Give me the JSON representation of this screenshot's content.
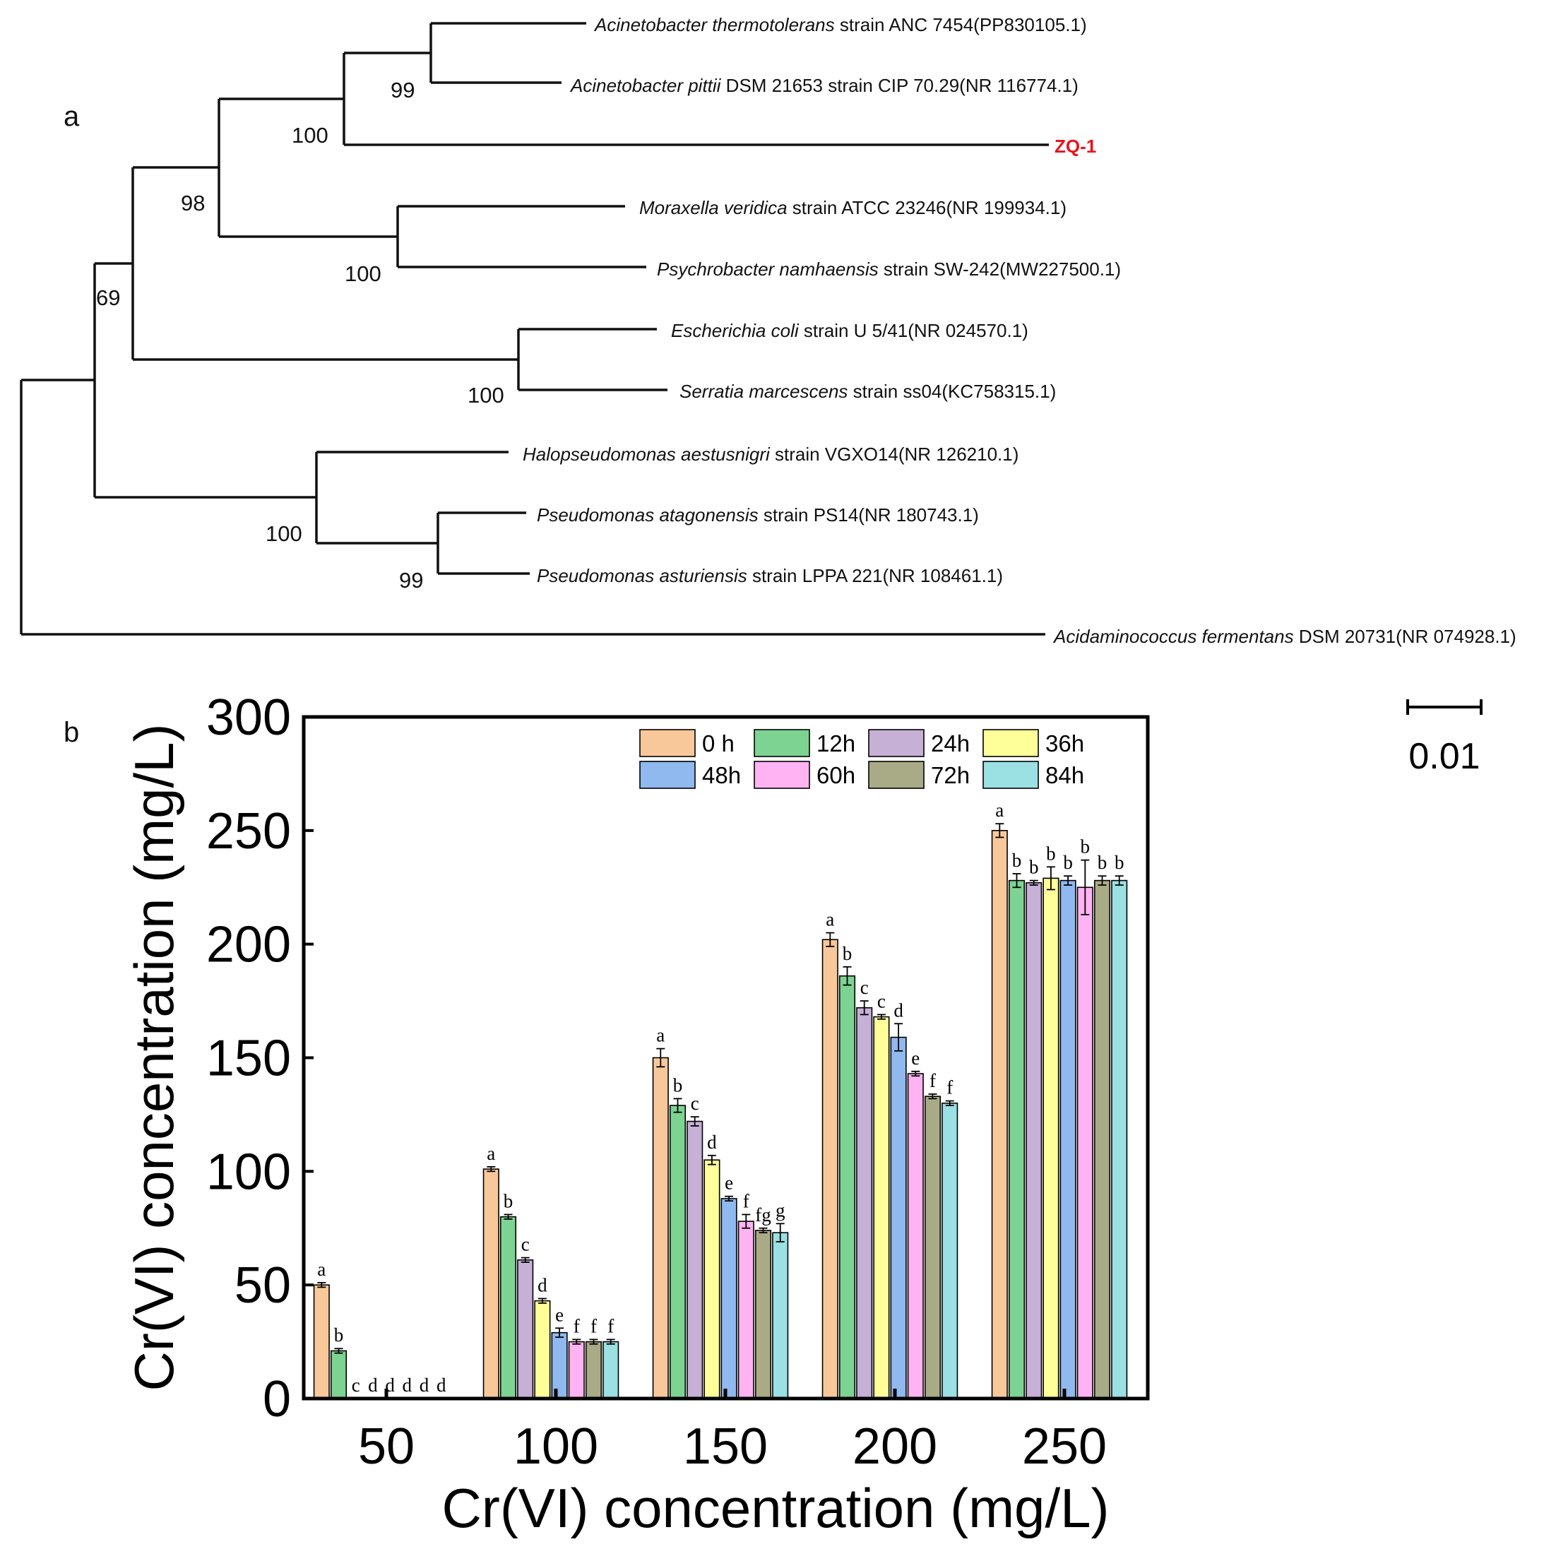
{
  "panels": {
    "a": "a",
    "b": "b"
  },
  "tree": {
    "scale_label": "0.01",
    "taxa": [
      {
        "id": "t1",
        "italic": "Acinetobacter thermotolerans",
        "rest": " strain ANC 7454(PP830105.1)"
      },
      {
        "id": "t2",
        "italic": "Acinetobacter pittii",
        "rest": " DSM 21653 strain CIP 70.29(NR 116774.1)"
      },
      {
        "id": "t3",
        "italic": "",
        "rest": "ZQ-1",
        "highlight": true
      },
      {
        "id": "t4",
        "italic": "Moraxella veridica",
        "rest": " strain ATCC 23246(NR 199934.1)"
      },
      {
        "id": "t5",
        "italic": "Psychrobacter namhaensis",
        "rest": " strain SW-242(MW227500.1)"
      },
      {
        "id": "t6",
        "italic": "Escherichia coli",
        "rest": " strain U 5/41(NR 024570.1)"
      },
      {
        "id": "t7",
        "italic": "Serratia marcescens",
        "rest": " strain ss04(KC758315.1)"
      },
      {
        "id": "t8",
        "italic": "Halopseudomonas aestusnigri",
        "rest": " strain VGXO14(NR 126210.1)"
      },
      {
        "id": "t9",
        "italic": "Pseudomonas atagonensis",
        "rest": " strain PS14(NR 180743.1)"
      },
      {
        "id": "t10",
        "italic": "Pseudomonas asturiensis",
        "rest": " strain LPPA 221(NR 108461.1)"
      },
      {
        "id": "t11",
        "italic": "Acidaminococcus fermentans",
        "rest": " DSM 20731(NR 074928.1)"
      }
    ],
    "bootstrap": [
      "99",
      "100",
      "98",
      "100",
      "69",
      "100",
      "100",
      "99"
    ],
    "highlight_color": "#e8141c"
  },
  "chart_data": {
    "type": "bar",
    "title": "",
    "xlabel": "Cr(VI) concentration (mg/L)",
    "ylabel": "Cr(VI) concentration (mg/L)",
    "ylim": [
      0,
      300
    ],
    "yticks": [
      0,
      50,
      100,
      150,
      200,
      250,
      300
    ],
    "categories": [
      "50",
      "100",
      "150",
      "200",
      "250"
    ],
    "grid": false,
    "legend_position": "top-right",
    "series": [
      {
        "name": "0 h",
        "color": "#f9c89a",
        "values": [
          50,
          101,
          150,
          202,
          250
        ],
        "errors": [
          1,
          1,
          4,
          3,
          3
        ],
        "labels": [
          "a",
          "a",
          "a",
          "a",
          "a"
        ]
      },
      {
        "name": "12h",
        "color": "#7dd392",
        "values": [
          21,
          80,
          129,
          186,
          228
        ],
        "errors": [
          1,
          1,
          3,
          4,
          3
        ],
        "labels": [
          "b",
          "b",
          "b",
          "b",
          "b"
        ]
      },
      {
        "name": "24h",
        "color": "#c6b0d6",
        "values": [
          0,
          61,
          122,
          172,
          227
        ],
        "errors": [
          0,
          1,
          2,
          3,
          1
        ],
        "labels": [
          "c",
          "c",
          "c",
          "c",
          "b"
        ]
      },
      {
        "name": "36h",
        "color": "#ffff99",
        "values": [
          0,
          43,
          105,
          168,
          229
        ],
        "errors": [
          0,
          1,
          2,
          1,
          5
        ],
        "labels": [
          "d",
          "d",
          "d",
          "c",
          "b"
        ]
      },
      {
        "name": "48h",
        "color": "#8fb9ef",
        "values": [
          0,
          29,
          88,
          159,
          228
        ],
        "errors": [
          0,
          2,
          1,
          6,
          2
        ],
        "labels": [
          "d",
          "e",
          "e",
          "d",
          "b"
        ]
      },
      {
        "name": "60h",
        "color": "#ffb3f2",
        "values": [
          0,
          25,
          78,
          143,
          225
        ],
        "errors": [
          0,
          1,
          3,
          1,
          12
        ],
        "labels": [
          "d",
          "f",
          "f",
          "e",
          "b"
        ]
      },
      {
        "name": "72h",
        "color": "#a9ab87",
        "values": [
          0,
          25,
          74,
          133,
          228
        ],
        "errors": [
          0,
          1,
          1,
          1,
          2
        ],
        "labels": [
          "d",
          "f",
          "fg",
          "f",
          "b"
        ]
      },
      {
        "name": "84h",
        "color": "#9be0e3",
        "values": [
          0,
          25,
          73,
          130,
          228
        ],
        "errors": [
          0,
          1,
          4,
          1,
          2
        ],
        "labels": [
          "d",
          "f",
          "g",
          "f",
          "b"
        ]
      }
    ]
  }
}
